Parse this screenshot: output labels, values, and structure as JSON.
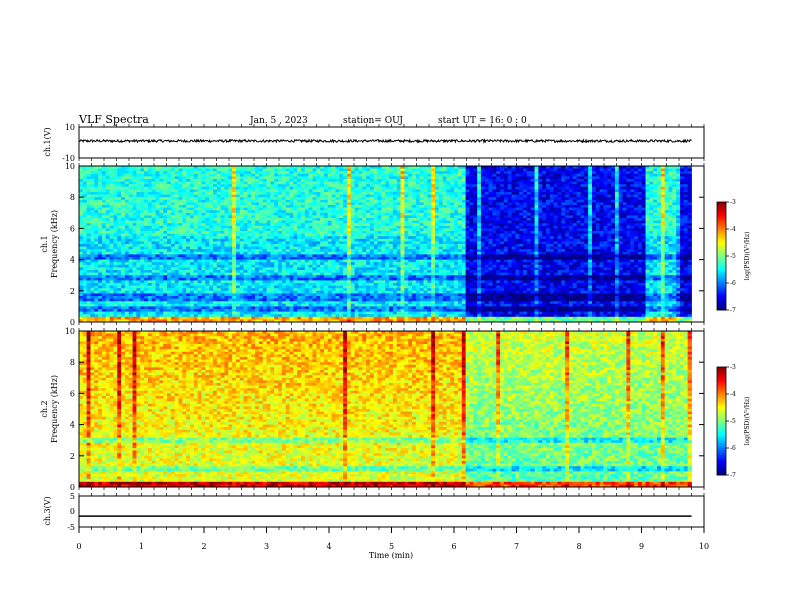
{
  "header": {
    "title": "VLF Spectra",
    "date": "Jan. 5 , 2023",
    "station": "station= OUJ",
    "start": "start UT = 16: 0 : 0"
  },
  "chart_data": [
    {
      "type": "line",
      "id": "ch1-waveform",
      "ylabel": "ch.1(V)",
      "ylim": [
        -10,
        10
      ],
      "yticks": [
        "10",
        "-10"
      ],
      "xlim": [
        0,
        10
      ],
      "x_end": 9.8,
      "trace_level": 1,
      "trace_noise": 0.8,
      "colors": {
        "trace": "#000000"
      }
    },
    {
      "type": "heatmap",
      "id": "ch1-spectrogram",
      "ylabel": "ch.1\nFrequency (kHz)",
      "ylabel_top": "ch.1",
      "ylabel_bottom": "Frequency (kHz)",
      "ylim": [
        0,
        10
      ],
      "yticks": [
        "0",
        "2",
        "4",
        "6",
        "8",
        "10"
      ],
      "xlim": [
        0,
        10
      ],
      "x_end": 9.8,
      "colorbar": {
        "label": "log(PSD)(V²/Hz)",
        "ticks": [
          "-3",
          "-4",
          "-5",
          "-6",
          "-7"
        ],
        "range": [
          -7,
          -3
        ]
      },
      "segments": [
        {
          "x_start": 0,
          "x_end": 6.2,
          "level": "medium"
        },
        {
          "x_start": 6.2,
          "x_end": 9.05,
          "level": "low"
        },
        {
          "x_start": 9.05,
          "x_end": 9.55,
          "level": "medium"
        },
        {
          "x_start": 9.55,
          "x_end": 9.8,
          "level": "low"
        }
      ]
    },
    {
      "type": "heatmap",
      "id": "ch2-spectrogram",
      "ylabel": "ch.2\nFrequency (kHz)",
      "ylabel_top": "ch.2",
      "ylabel_bottom": "Frequency (kHz)",
      "ylim": [
        0,
        10
      ],
      "yticks": [
        "0",
        "2",
        "4",
        "6",
        "8",
        "10"
      ],
      "xlim": [
        0,
        10
      ],
      "x_end": 9.8,
      "colorbar": {
        "label": "log(PSD)(V²/Hz)",
        "ticks": [
          "-3",
          "-4",
          "-5",
          "-6",
          "-7"
        ],
        "range": [
          -7,
          -3
        ]
      },
      "segments": [
        {
          "x_start": 0,
          "x_end": 6.2,
          "level": "high"
        },
        {
          "x_start": 6.2,
          "x_end": 9.8,
          "level": "medium-high"
        }
      ]
    },
    {
      "type": "line",
      "id": "ch3-waveform",
      "ylabel": "ch.3(V)",
      "ylim": [
        -5,
        5
      ],
      "yticks": [
        "5",
        "0",
        "-5"
      ],
      "xlim": [
        0,
        10
      ],
      "x_end": 9.8,
      "trace_level": -1.5,
      "colors": {
        "trace": "#000000"
      },
      "xlabel": "Time (min)",
      "xticks": [
        "0",
        "1",
        "2",
        "3",
        "4",
        "5",
        "6",
        "7",
        "8",
        "9",
        "10"
      ]
    }
  ]
}
